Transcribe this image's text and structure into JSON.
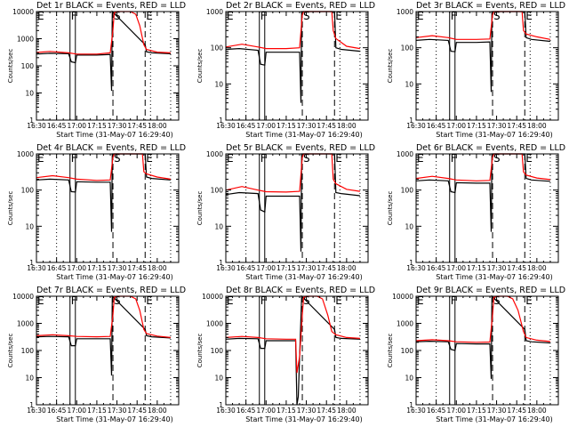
{
  "chart_data": {
    "type": "line",
    "layout": "3x3 grid of panels",
    "shared": {
      "xlabel": "Start Time (31-May-07 16:29:40)",
      "ylabel": "Counts/sec",
      "x_tick_labels": [
        "16:30",
        "16:45",
        "17:00",
        "17:15",
        "17:30",
        "17:45",
        "18:00"
      ],
      "x_ticks_min": [
        0,
        15,
        30,
        45,
        60,
        75,
        90
      ],
      "xlim_min": [
        0,
        106
      ],
      "yscale": "log",
      "legend": "in title: BLACK = Events, RED = LLD",
      "series_colors": {
        "events": "#000000",
        "lld": "#ff0000"
      },
      "vlines": [
        {
          "t_min": 15,
          "style": "dotted"
        },
        {
          "t_min": 25,
          "style": "solid"
        },
        {
          "t_min": 29,
          "style": "solid"
        },
        {
          "t_min": 57,
          "style": "dashed"
        },
        {
          "t_min": 81,
          "style": "dashed"
        },
        {
          "t_min": 85,
          "style": "dotted"
        },
        {
          "t_min": 100,
          "style": "dotted"
        }
      ],
      "markers": [
        {
          "label": "E",
          "t_min": 0
        },
        {
          "label": "F",
          "t_min": 25
        },
        {
          "label": "S",
          "t_min": 57
        },
        {
          "label": "E",
          "t_min": 81
        }
      ]
    },
    "panels": [
      {
        "title": "Det 1r BLACK = Events, RED = LLD",
        "ylim": [
          1,
          10000
        ],
        "y_tick_labels": [
          "1",
          "10",
          "100",
          "1000",
          "10000"
        ],
        "events": [
          [
            0,
            270
          ],
          [
            10,
            290
          ],
          [
            24,
            280
          ],
          [
            26,
            140
          ],
          [
            29,
            130
          ],
          [
            30,
            250
          ],
          [
            45,
            250
          ],
          [
            55,
            260
          ],
          [
            56,
            12
          ],
          [
            56.5,
            15000
          ],
          [
            81,
            600
          ],
          [
            82,
            330
          ],
          [
            86,
            300
          ],
          [
            100,
            280
          ]
        ],
        "lld": [
          [
            0,
            310
          ],
          [
            10,
            340
          ],
          [
            24,
            300
          ],
          [
            30,
            270
          ],
          [
            45,
            270
          ],
          [
            55,
            300
          ],
          [
            57,
            2000
          ],
          [
            58,
            9000
          ],
          [
            60,
            15000
          ],
          [
            70,
            15000
          ],
          [
            74,
            8000
          ],
          [
            77,
            3000
          ],
          [
            80,
            600
          ],
          [
            82,
            400
          ],
          [
            90,
            320
          ],
          [
            100,
            300
          ]
        ]
      },
      {
        "title": "Det 2r BLACK = Events, RED = LLD",
        "ylim": [
          1,
          1000
        ],
        "y_tick_labels": [
          "1",
          "10",
          "100",
          "1000"
        ],
        "events": [
          [
            0,
            90
          ],
          [
            10,
            95
          ],
          [
            24,
            85
          ],
          [
            26,
            35
          ],
          [
            29,
            33
          ],
          [
            30,
            75
          ],
          [
            45,
            75
          ],
          [
            55,
            75
          ],
          [
            56,
            3
          ],
          [
            56.5,
            2000
          ],
          [
            81,
            2000
          ],
          [
            82,
            100
          ],
          [
            86,
            90
          ],
          [
            100,
            80
          ]
        ],
        "lld": [
          [
            0,
            105
          ],
          [
            12,
            125
          ],
          [
            24,
            105
          ],
          [
            30,
            95
          ],
          [
            45,
            95
          ],
          [
            55,
            100
          ],
          [
            57,
            800
          ],
          [
            58,
            2000
          ],
          [
            79,
            2000
          ],
          [
            80,
            300
          ],
          [
            82,
            180
          ],
          [
            90,
            110
          ],
          [
            100,
            95
          ]
        ]
      },
      {
        "title": "Det 3r BLACK = Events, RED = LLD",
        "ylim": [
          1,
          1000
        ],
        "y_tick_labels": [
          "1",
          "10",
          "100",
          "1000"
        ],
        "events": [
          [
            0,
            160
          ],
          [
            10,
            170
          ],
          [
            24,
            160
          ],
          [
            26,
            80
          ],
          [
            29,
            78
          ],
          [
            30,
            140
          ],
          [
            45,
            140
          ],
          [
            55,
            145
          ],
          [
            56,
            6
          ],
          [
            56.5,
            2000
          ],
          [
            81,
            2000
          ],
          [
            82,
            190
          ],
          [
            86,
            170
          ],
          [
            100,
            150
          ]
        ],
        "lld": [
          [
            0,
            190
          ],
          [
            12,
            215
          ],
          [
            24,
            190
          ],
          [
            30,
            170
          ],
          [
            45,
            170
          ],
          [
            55,
            175
          ],
          [
            57,
            800
          ],
          [
            58,
            2000
          ],
          [
            79,
            2000
          ],
          [
            80,
            300
          ],
          [
            82,
            240
          ],
          [
            90,
            200
          ],
          [
            100,
            170
          ]
        ]
      },
      {
        "title": "Det 4r BLACK = Events, RED = LLD",
        "ylim": [
          1,
          1000
        ],
        "y_tick_labels": [
          "1",
          "10",
          "100",
          "1000"
        ],
        "events": [
          [
            0,
            190
          ],
          [
            10,
            200
          ],
          [
            24,
            190
          ],
          [
            26,
            90
          ],
          [
            29,
            88
          ],
          [
            30,
            170
          ],
          [
            45,
            165
          ],
          [
            55,
            165
          ],
          [
            56,
            7
          ],
          [
            56.5,
            2000
          ],
          [
            81,
            2000
          ],
          [
            82,
            230
          ],
          [
            86,
            210
          ],
          [
            100,
            190
          ]
        ],
        "lld": [
          [
            0,
            220
          ],
          [
            12,
            250
          ],
          [
            24,
            220
          ],
          [
            30,
            200
          ],
          [
            45,
            185
          ],
          [
            55,
            190
          ],
          [
            57,
            800
          ],
          [
            58,
            2000
          ],
          [
            79,
            2000
          ],
          [
            80,
            320
          ],
          [
            82,
            280
          ],
          [
            90,
            230
          ],
          [
            100,
            200
          ]
        ]
      },
      {
        "title": "Det 5r BLACK = Events, RED = LLD",
        "ylim": [
          1,
          1000
        ],
        "y_tick_labels": [
          "1",
          "10",
          "100",
          "1000"
        ],
        "events": [
          [
            0,
            75
          ],
          [
            10,
            85
          ],
          [
            24,
            80
          ],
          [
            26,
            28
          ],
          [
            29,
            25
          ],
          [
            30,
            68
          ],
          [
            45,
            68
          ],
          [
            55,
            68
          ],
          [
            56,
            2
          ],
          [
            56.5,
            2000
          ],
          [
            81,
            2000
          ],
          [
            82,
            85
          ],
          [
            86,
            80
          ],
          [
            100,
            70
          ]
        ],
        "lld": [
          [
            0,
            100
          ],
          [
            12,
            125
          ],
          [
            24,
            100
          ],
          [
            30,
            90
          ],
          [
            45,
            88
          ],
          [
            55,
            92
          ],
          [
            57,
            800
          ],
          [
            58,
            2000
          ],
          [
            79,
            2000
          ],
          [
            80,
            200
          ],
          [
            82,
            150
          ],
          [
            90,
            105
          ],
          [
            100,
            92
          ]
        ]
      },
      {
        "title": "Det 6r BLACK = Events, RED = LLD",
        "ylim": [
          1,
          1000
        ],
        "y_tick_labels": [
          "1",
          "10",
          "100",
          "1000"
        ],
        "events": [
          [
            0,
            180
          ],
          [
            10,
            190
          ],
          [
            24,
            180
          ],
          [
            26,
            90
          ],
          [
            29,
            85
          ],
          [
            30,
            160
          ],
          [
            45,
            155
          ],
          [
            55,
            155
          ],
          [
            56,
            7
          ],
          [
            56.5,
            2000
          ],
          [
            81,
            2000
          ],
          [
            82,
            210
          ],
          [
            86,
            190
          ],
          [
            100,
            175
          ]
        ],
        "lld": [
          [
            0,
            210
          ],
          [
            12,
            240
          ],
          [
            24,
            210
          ],
          [
            30,
            190
          ],
          [
            45,
            180
          ],
          [
            55,
            185
          ],
          [
            57,
            800
          ],
          [
            58,
            2000
          ],
          [
            79,
            2000
          ],
          [
            80,
            320
          ],
          [
            82,
            260
          ],
          [
            90,
            215
          ],
          [
            100,
            195
          ]
        ]
      },
      {
        "title": "Det 7r BLACK = Events, RED = LLD",
        "ylim": [
          1,
          10000
        ],
        "y_tick_labels": [
          "1",
          "10",
          "100",
          "1000",
          "10000"
        ],
        "events": [
          [
            0,
            320
          ],
          [
            10,
            330
          ],
          [
            24,
            320
          ],
          [
            26,
            150
          ],
          [
            29,
            150
          ],
          [
            30,
            270
          ],
          [
            45,
            270
          ],
          [
            55,
            270
          ],
          [
            56,
            12
          ],
          [
            56.5,
            15000
          ],
          [
            81,
            600
          ],
          [
            82,
            350
          ],
          [
            86,
            320
          ],
          [
            100,
            290
          ]
        ],
        "lld": [
          [
            0,
            350
          ],
          [
            12,
            380
          ],
          [
            24,
            350
          ],
          [
            30,
            330
          ],
          [
            45,
            320
          ],
          [
            55,
            330
          ],
          [
            57,
            2000
          ],
          [
            58,
            9000
          ],
          [
            60,
            15000
          ],
          [
            70,
            15000
          ],
          [
            74,
            8000
          ],
          [
            77,
            3000
          ],
          [
            80,
            600
          ],
          [
            82,
            420
          ],
          [
            90,
            340
          ],
          [
            100,
            300
          ]
        ]
      },
      {
        "title": "Det 8r BLACK = Events, RED = LLD",
        "ylim": [
          1,
          10000
        ],
        "y_tick_labels": [
          "1",
          "10",
          "100",
          "1000",
          "10000"
        ],
        "events": [
          [
            0,
            260
          ],
          [
            10,
            280
          ],
          [
            24,
            270
          ],
          [
            26,
            120
          ],
          [
            29,
            120
          ],
          [
            30,
            230
          ],
          [
            45,
            230
          ],
          [
            52,
            230
          ],
          [
            53,
            1
          ],
          [
            54,
            2
          ],
          [
            56.5,
            15000
          ],
          [
            81,
            600
          ],
          [
            82,
            300
          ],
          [
            86,
            280
          ],
          [
            100,
            260
          ]
        ],
        "lld": [
          [
            0,
            300
          ],
          [
            12,
            330
          ],
          [
            24,
            300
          ],
          [
            30,
            270
          ],
          [
            45,
            260
          ],
          [
            52,
            260
          ],
          [
            53,
            15
          ],
          [
            55,
            60
          ],
          [
            57,
            2000
          ],
          [
            58,
            9000
          ],
          [
            60,
            15000
          ],
          [
            68,
            15000
          ],
          [
            72,
            8000
          ],
          [
            76,
            2000
          ],
          [
            79,
            500
          ],
          [
            82,
            380
          ],
          [
            90,
            300
          ],
          [
            100,
            280
          ]
        ]
      },
      {
        "title": "Det 9r BLACK = Events, RED = LLD",
        "ylim": [
          1,
          10000
        ],
        "y_tick_labels": [
          "1",
          "10",
          "100",
          "1000",
          "10000"
        ],
        "events": [
          [
            0,
            210
          ],
          [
            10,
            220
          ],
          [
            24,
            210
          ],
          [
            26,
            110
          ],
          [
            29,
            100
          ],
          [
            30,
            180
          ],
          [
            45,
            175
          ],
          [
            55,
            175
          ],
          [
            56,
            9
          ],
          [
            56.5,
            15000
          ],
          [
            81,
            600
          ],
          [
            82,
            230
          ],
          [
            86,
            210
          ],
          [
            100,
            190
          ]
        ],
        "lld": [
          [
            0,
            230
          ],
          [
            12,
            250
          ],
          [
            24,
            230
          ],
          [
            30,
            210
          ],
          [
            45,
            200
          ],
          [
            55,
            205
          ],
          [
            57,
            2000
          ],
          [
            58,
            9000
          ],
          [
            60,
            15000
          ],
          [
            68,
            15000
          ],
          [
            72,
            8000
          ],
          [
            76,
            3000
          ],
          [
            80,
            500
          ],
          [
            82,
            300
          ],
          [
            90,
            240
          ],
          [
            100,
            215
          ]
        ]
      }
    ]
  }
}
